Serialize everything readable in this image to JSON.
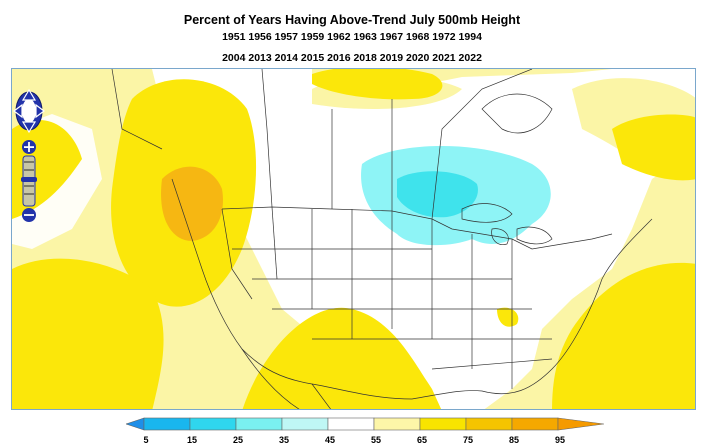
{
  "title": {
    "line1": "Percent of Years Having Above-Trend July 500mb Height",
    "line2": "1951 1956 1957 1959 1962 1963 1967 1968 1972 1994",
    "line3": "2004 2013 2014 2015 2016 2018 2019 2020 2021 2022"
  },
  "controls": {
    "pan_icon": "pan-arrows-icon",
    "zoom_in_icon": "plus-icon",
    "zoom_out_icon": "minus-icon"
  },
  "legend": {
    "ticks": [
      "5",
      "15",
      "25",
      "35",
      "45",
      "55",
      "65",
      "75",
      "85",
      "95"
    ],
    "colors": [
      "#1f8fe8",
      "#19b6ee",
      "#2fd6ee",
      "#7af0f0",
      "#ffffff",
      "#ffffff",
      "#fdf6a8",
      "#f8e400",
      "#f5c400",
      "#f59a00"
    ]
  },
  "map": {
    "colors": {
      "pale_yellow": "#fbf5a6",
      "yellow": "#fbe70a",
      "orange": "#f6b712",
      "light_cyan": "#8ef4f6",
      "cyan": "#3fe3ec",
      "border": "#333333"
    }
  }
}
